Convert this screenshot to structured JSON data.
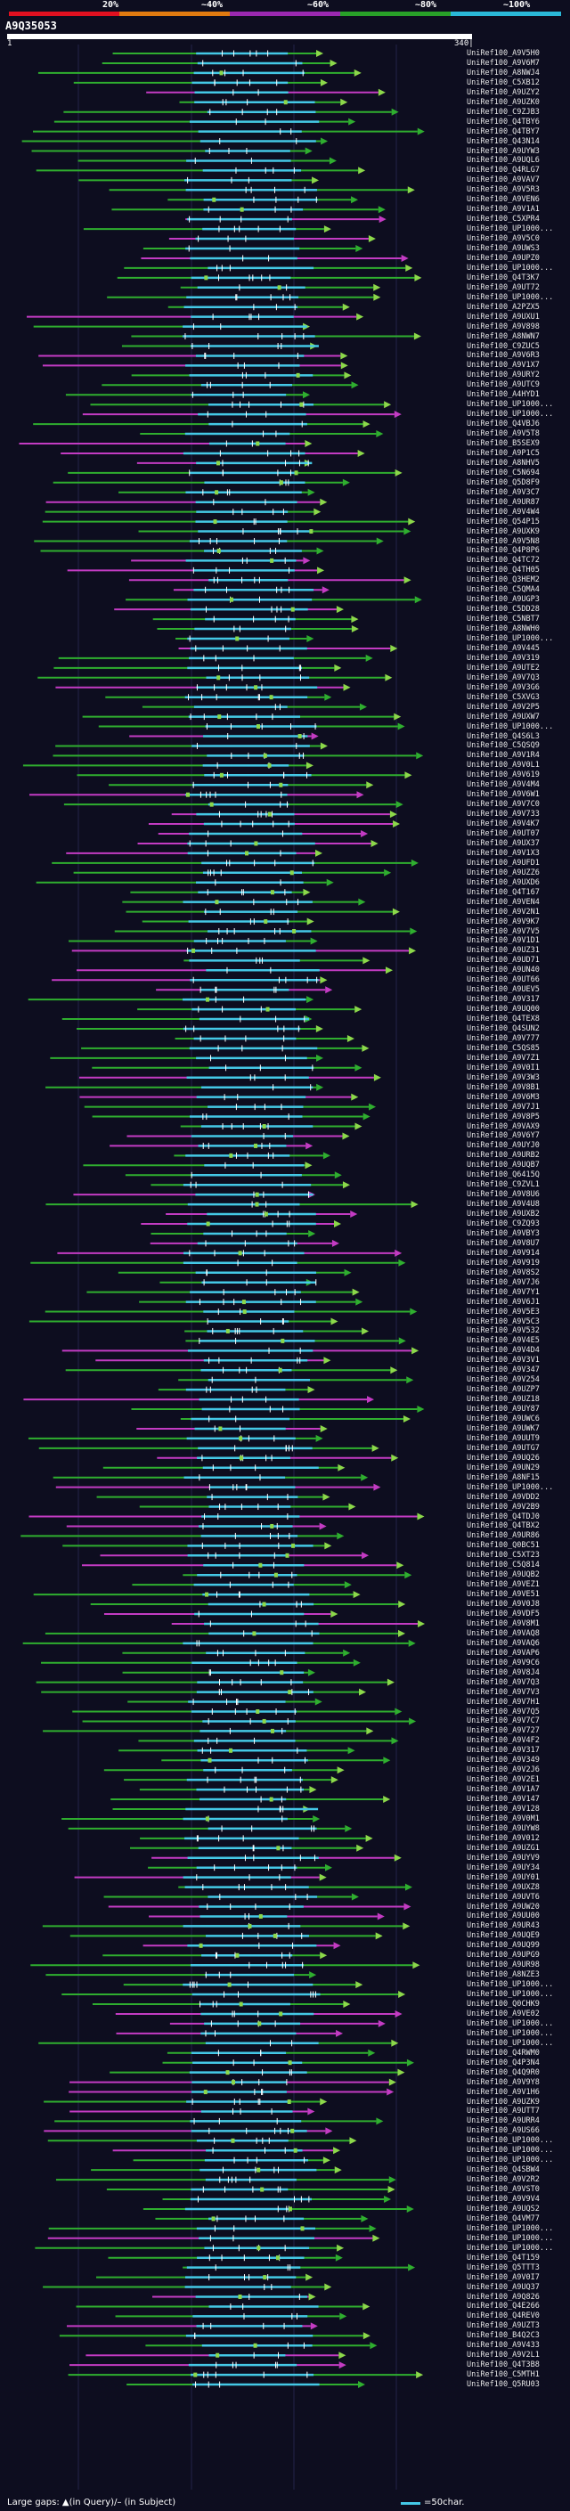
{
  "scale": {
    "labels": [
      "20%",
      "~40%",
      "~60%",
      "~80%",
      "~100%"
    ],
    "colors": [
      "#e01020",
      "#e07a10",
      "#9a28b0",
      "#28a028",
      "#2ab8d8"
    ]
  },
  "query": {
    "title": "A9Q35053",
    "start": "1",
    "end": "340|"
  },
  "legend": {
    "text": "Large gaps: ▲(in Query)/– (in Subject)",
    "scale_text": "=50char."
  },
  "hits": [
    "UniRef100_A9V5H0",
    "UniRef100_A9V6M7",
    "UniRef100_A8NWJ4",
    "UniRef100_C5XB12",
    "UniRef100_A9UZY2",
    "UniRef100_A9UZK0",
    "UniRef100_C9ZJB3",
    "UniRef100_Q4TBY6",
    "UniRef100_Q4TBY7",
    "UniRef100_Q43N14",
    "UniRef100_A9UYW3",
    "UniRef100_A9UQL6",
    "UniRef100_Q4RLG7",
    "UniRef100_A9VAV7",
    "UniRef100_A9V5R3",
    "UniRef100_A9VEN6",
    "UniRef100_A9V1A1",
    "UniRef100_C5XPR4",
    "UniRef100_UP1000...",
    "UniRef100_A9V5C0",
    "UniRef100_A9UWS3",
    "UniRef100_A9UPZ0",
    "UniRef100_UP1000...",
    "UniRef100_Q4T3K7",
    "UniRef100_A9UT72",
    "UniRef100_UP1000...",
    "UniRef100_A2PZX5",
    "UniRef100_A9UXU1",
    "UniRef100_A9V898",
    "UniRef100_A8NWN7",
    "UniRef100_C9ZUC5",
    "UniRef100_A9V6R3",
    "UniRef100_A9V1X7",
    "UniRef100_A9URY2",
    "UniRef100_A9UTC9",
    "UniRef100_A4HYD1",
    "UniRef100_UP1000...",
    "UniRef100_UP1000...",
    "UniRef100_Q4VBJ6",
    "UniRef100_A9V5T8",
    "UniRef100_B5SEX9",
    "UniRef100_A9P1C5",
    "UniRef100_A8NHV5",
    "UniRef100_C5N694",
    "UniRef100_Q5D8F9",
    "UniRef100_A9V3C7",
    "UniRef100_A9UR87",
    "UniRef100_A9V4W4",
    "UniRef100_Q54P15",
    "UniRef100_A9UXK9",
    "UniRef100_A9V5N8",
    "UniRef100_Q4P8P6",
    "UniRef100_Q4TC72",
    "UniRef100_Q4TH05",
    "UniRef100_Q3HEM2",
    "UniRef100_C5QMA4",
    "UniRef100_A9UGP3",
    "UniRef100_C5DD28",
    "UniRef100_C5NBT7",
    "UniRef100_A8NWH0",
    "UniRef100_UP1000...",
    "UniRef100_A9V445",
    "UniRef100_A9V319",
    "UniRef100_A9UTE2",
    "UniRef100_A9V7Q3",
    "UniRef100_A9V3G6",
    "UniRef100_C5XVG3",
    "UniRef100_A9V2P5",
    "UniRef100_A9UXW7",
    "UniRef100_UP1000...",
    "UniRef100_Q4S6L3",
    "UniRef100_C5QSQ9",
    "UniRef100_A9V1R4",
    "UniRef100_A9V0L1",
    "UniRef100_A9V619",
    "UniRef100_A9V4M4",
    "UniRef100_A9V6W1",
    "UniRef100_A9V7C0",
    "UniRef100_A9V733",
    "UniRef100_A9V4K7",
    "UniRef100_A9UT07",
    "UniRef100_A9UX37",
    "UniRef100_A9V1X3",
    "UniRef100_A9UFD1",
    "UniRef100_A9UZZ6",
    "UniRef100_A9UXD6",
    "UniRef100_Q4T167",
    "UniRef100_A9VEN4",
    "UniRef100_A9V2N1",
    "UniRef100_A9V9K7",
    "UniRef100_A9V7V5",
    "UniRef100_A9V1D1",
    "UniRef100_A9UZ31",
    "UniRef100_A9UD71",
    "UniRef100_A9UN40",
    "UniRef100_A9UT66",
    "UniRef100_A9UEV5",
    "UniRef100_A9V317",
    "UniRef100_A9UQ00",
    "UniRef100_Q4TEX8",
    "UniRef100_Q4SUN2",
    "UniRef100_A9V777",
    "UniRef100_C5QS85",
    "UniRef100_A9V7Z1",
    "UniRef100_A9V0I1",
    "UniRef100_A9V3W3",
    "UniRef100_A9V8B1",
    "UniRef100_A9V6M3",
    "UniRef100_A9V7J1",
    "UniRef100_A9V8P5",
    "UniRef100_A9VAX9",
    "UniRef100_A9V6Y7",
    "UniRef100_A9UYJ0",
    "UniRef100_A9URB2",
    "UniRef100_A9UQB7",
    "UniRef100_Q6415Q",
    "UniRef100_C9ZVL1",
    "UniRef100_A9V8U6",
    "UniRef100_A9V4U8",
    "UniRef100_A9UXB2",
    "UniRef100_C9ZQ93",
    "UniRef100_A9VBY3",
    "UniRef100_A9V8U7",
    "UniRef100_A9V914",
    "UniRef100_A9V919",
    "UniRef100_A9V8S2",
    "UniRef100_A9V7J6",
    "UniRef100_A9V7Y1",
    "UniRef100_A9V6J1",
    "UniRef100_A9V5E3",
    "UniRef100_A9V5C3",
    "UniRef100_A9V532",
    "UniRef100_A9V4E5",
    "UniRef100_A9V4D4",
    "UniRef100_A9V3V1",
    "UniRef100_A9V347",
    "UniRef100_A9V254",
    "UniRef100_A9UZP7",
    "UniRef100_A9UZ18",
    "UniRef100_A9UY87",
    "UniRef100_A9UWC6",
    "UniRef100_A9UWK7",
    "UniRef100_A9UUT9",
    "UniRef100_A9UTG7",
    "UniRef100_A9UQ26",
    "UniRef100_A9UN29",
    "UniRef100_A8NF15",
    "UniRef100_UP1000...",
    "UniRef100_A9VDD2",
    "UniRef100_A9V2B9",
    "UniRef100_Q4TDJ0",
    "UniRef100_Q4TBX2",
    "UniRef100_A9UR86",
    "UniRef100_Q0BC51",
    "UniRef100_C5XT23",
    "UniRef100_C5Q814",
    "UniRef100_A9UQB2",
    "UniRef100_A9VEZ1",
    "UniRef100_A9VE51",
    "UniRef100_A9V0J8",
    "UniRef100_A9VDF5",
    "UniRef100_A9V8M1",
    "UniRef100_A9VAQ8",
    "UniRef100_A9VAQ6",
    "UniRef100_A9VAP6",
    "UniRef100_A9V9C6",
    "UniRef100_A9V8J4",
    "UniRef100_A9V7Q3",
    "UniRef100_A9V7V3",
    "UniRef100_A9V7H1",
    "UniRef100_A9V7Q5",
    "UniRef100_A9V7C7",
    "UniRef100_A9V727",
    "UniRef100_A9V4F2",
    "UniRef100_A9V317",
    "UniRef100_A9V349",
    "UniRef100_A9V2J6",
    "UniRef100_A9V2E1",
    "UniRef100_A9V1A7",
    "UniRef100_A9V147",
    "UniRef100_A9V128",
    "UniRef100_A9V0M1",
    "UniRef100_A9UYW8",
    "UniRef100_A9V012",
    "UniRef100_A9UZG1",
    "UniRef100_A9UYV9",
    "UniRef100_A9UY34",
    "UniRef100_A9UY01",
    "UniRef100_A9UXZ8",
    "UniRef100_A9UVT6",
    "UniRef100_A9UW20",
    "UniRef100_A9UU00",
    "UniRef100_A9UR43",
    "UniRef100_A9UQE9",
    "UniRef100_A9UQ99",
    "UniRef100_A9UPG9",
    "UniRef100_A9UR98",
    "UniRef100_A8NZE3",
    "UniRef100_UP1000...",
    "UniRef100_UP1000...",
    "UniRef100_Q0CHK9",
    "UniRef100_A9VE02",
    "UniRef100_UP1000...",
    "UniRef100_UP1000...",
    "UniRef100_UP1000...",
    "UniRef100_Q4RWM0",
    "UniRef100_Q4P3N4",
    "UniRef100_Q4Q9R0",
    "UniRef100_A9V9Y8",
    "UniRef100_A9V1H6",
    "UniRef100_A9UZK9",
    "UniRef100_A9UTT7",
    "UniRef100_A9URR4",
    "UniRef100_A9US66",
    "UniRef100_UP1000...",
    "UniRef100_UP1000...",
    "UniRef100_UP1000...",
    "UniRef100_Q4SBW4",
    "UniRef100_A9V2R2",
    "UniRef100_A9VST0",
    "UniRef100_A9V9V4",
    "UniRef100_A9UQS2",
    "UniRef100_Q4VM77",
    "UniRef100_UP1000...",
    "UniRef100_UP1000...",
    "UniRef100_UP1000...",
    "UniRef100_Q4T159",
    "UniRef100_Q5TTT3",
    "UniRef100_A9V0I7",
    "UniRef100_A9UQ37",
    "UniRef100_A9Q826",
    "UniRef100_Q4E266",
    "UniRef100_Q4REV0",
    "UniRef100_A9UZT3",
    "UniRef100_B4Q2C3",
    "UniRef100_A9V433",
    "UniRef100_A9V2L1",
    "UniRef100_Q4T3B8",
    "UniRef100_C5MTH1",
    "UniRef100_Q5RU03"
  ]
}
